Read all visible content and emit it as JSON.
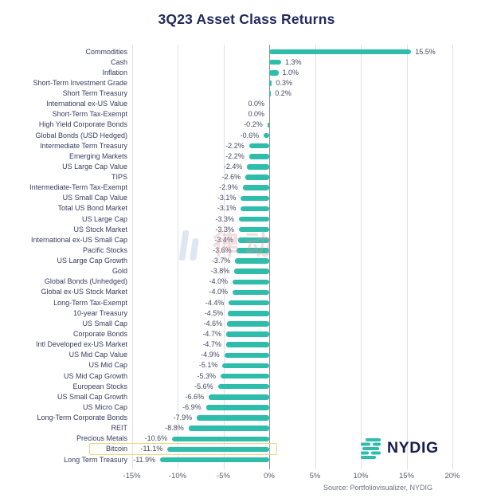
{
  "title": "3Q23 Asset Class Returns",
  "source_note": "Source: Portfoliovisualizer, NYDIG",
  "brand": {
    "name": "NYDIG",
    "icon": "nydig-s-mark-icon",
    "navy": "#151c51",
    "teal": "#2ebcab"
  },
  "watermark": {
    "text": "律动",
    "bar_color": "#9fb4dd",
    "text_color": "#d8989c"
  },
  "chart_data": {
    "type": "bar",
    "orientation": "horizontal",
    "title": "3Q23 Asset Class Returns",
    "xlabel": "",
    "ylabel": "",
    "grid": true,
    "xlim": [
      -15,
      20
    ],
    "bar_color": "#2ebcab",
    "highlight": {
      "category": "Bitcoin",
      "border_color": "#e6d88a"
    },
    "x_ticks": [
      {
        "value": -15,
        "label": "-15%"
      },
      {
        "value": -10,
        "label": "-10%"
      },
      {
        "value": -5,
        "label": "-5%"
      },
      {
        "value": 0,
        "label": "0%"
      },
      {
        "value": 5,
        "label": "5%"
      },
      {
        "value": 10,
        "label": "10%"
      },
      {
        "value": 15,
        "label": "15%"
      },
      {
        "value": 20,
        "label": "20%"
      }
    ],
    "rows": [
      {
        "category": "Commodities",
        "value": 15.5,
        "display": "15.5%"
      },
      {
        "category": "Cash",
        "value": 1.3,
        "display": "1.3%"
      },
      {
        "category": "Inflation",
        "value": 1.0,
        "display": "1.0%"
      },
      {
        "category": "Short-Term Investment Grade",
        "value": 0.3,
        "display": "0.3%"
      },
      {
        "category": "Short Term Treasury",
        "value": 0.2,
        "display": "0.2%"
      },
      {
        "category": "International ex-US Value",
        "value": 0.0,
        "display": "0.0%"
      },
      {
        "category": "Short-Term Tax-Exempt",
        "value": 0.0,
        "display": "0.0%"
      },
      {
        "category": "High Yield Corporate Bonds",
        "value": -0.2,
        "display": "-0.2%"
      },
      {
        "category": "Global Bonds (USD Hedged)",
        "value": -0.6,
        "display": "-0.6%"
      },
      {
        "category": "Intermediate Term Treasury",
        "value": -2.2,
        "display": "-2.2%"
      },
      {
        "category": "Emerging Markets",
        "value": -2.2,
        "display": "-2.2%"
      },
      {
        "category": "US Large Cap Value",
        "value": -2.4,
        "display": "-2.4%"
      },
      {
        "category": "TIPS",
        "value": -2.6,
        "display": "-2.6%"
      },
      {
        "category": "Intermediate-Term Tax-Exempt",
        "value": -2.9,
        "display": "-2.9%"
      },
      {
        "category": "US Small Cap Value",
        "value": -3.1,
        "display": "-3.1%"
      },
      {
        "category": "Total US Bond Market",
        "value": -3.1,
        "display": "-3.1%"
      },
      {
        "category": "US Large Cap",
        "value": -3.3,
        "display": "-3.3%"
      },
      {
        "category": "US Stock Market",
        "value": -3.3,
        "display": "-3.3%"
      },
      {
        "category": "International ex-US Small Cap",
        "value": -3.4,
        "display": "-3.4%"
      },
      {
        "category": "Pacific Stocks",
        "value": -3.6,
        "display": "-3.6%"
      },
      {
        "category": "US Large Cap Growth",
        "value": -3.7,
        "display": "-3.7%"
      },
      {
        "category": "Gold",
        "value": -3.8,
        "display": "-3.8%"
      },
      {
        "category": "Global Bonds (Unhedged)",
        "value": -4.0,
        "display": "-4.0%"
      },
      {
        "category": "Global ex-US Stock Market",
        "value": -4.0,
        "display": "-4.0%"
      },
      {
        "category": "Long-Term Tax-Exempt",
        "value": -4.4,
        "display": "-4.4%"
      },
      {
        "category": "10-year Treasury",
        "value": -4.5,
        "display": "-4.5%"
      },
      {
        "category": "US Small Cap",
        "value": -4.6,
        "display": "-4.6%"
      },
      {
        "category": "Corporate Bonds",
        "value": -4.7,
        "display": "-4.7%"
      },
      {
        "category": "Intl Developed ex-US Market",
        "value": -4.7,
        "display": "-4.7%"
      },
      {
        "category": "US Mid Cap Value",
        "value": -4.9,
        "display": "-4.9%"
      },
      {
        "category": "US Mid Cap",
        "value": -5.1,
        "display": "-5.1%"
      },
      {
        "category": "US Mid Cap Growth",
        "value": -5.3,
        "display": "-5.3%"
      },
      {
        "category": "European Stocks",
        "value": -5.6,
        "display": "-5.6%"
      },
      {
        "category": "US Small Cap Growth",
        "value": -6.6,
        "display": "-6.6%"
      },
      {
        "category": "US Micro Cap",
        "value": -6.9,
        "display": "-6.9%"
      },
      {
        "category": "Long-Term Corporate Bonds",
        "value": -7.9,
        "display": "-7.9%"
      },
      {
        "category": "REIT",
        "value": -8.8,
        "display": "-8.8%"
      },
      {
        "category": "Precious Metals",
        "value": -10.6,
        "display": "-10.6%"
      },
      {
        "category": "Bitcoin",
        "value": -11.1,
        "display": "-11.1%"
      },
      {
        "category": "Long Term Treasury",
        "value": -11.9,
        "display": "-11.9%"
      }
    ]
  }
}
